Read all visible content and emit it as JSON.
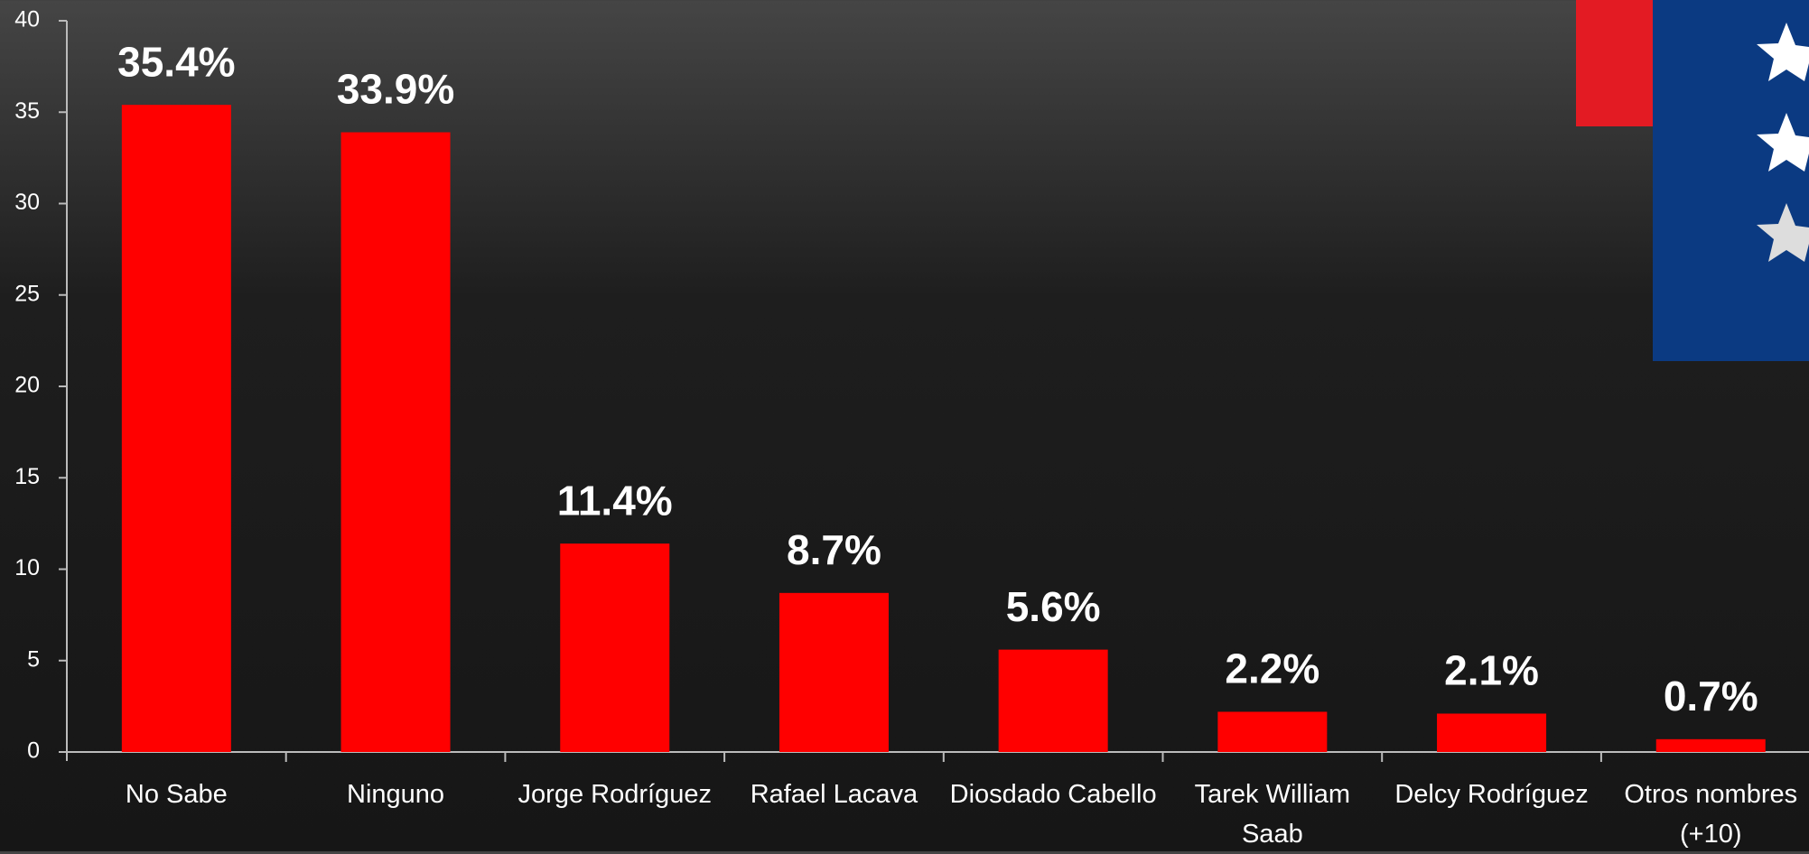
{
  "chart_data": {
    "type": "bar",
    "categories": [
      "No Sabe",
      "Ninguno",
      "Jorge Rodríguez",
      "Rafael Lacava",
      "Diosdado Cabello",
      "Tarek William Saab",
      "Delcy Rodríguez",
      "Otros nombres (+10)"
    ],
    "values": [
      35.4,
      33.9,
      11.4,
      8.7,
      5.6,
      2.2,
      2.1,
      0.7
    ],
    "value_labels": [
      "35.4%",
      "33.9%",
      "11.4%",
      "8.7%",
      "5.6%",
      "2.2%",
      "2.1%",
      "0.7%"
    ],
    "color": "#ff0000",
    "ylim": [
      0,
      40
    ],
    "yticks": [
      0,
      5,
      10,
      15,
      20,
      25,
      30,
      35,
      40
    ],
    "grid": false
  }
}
